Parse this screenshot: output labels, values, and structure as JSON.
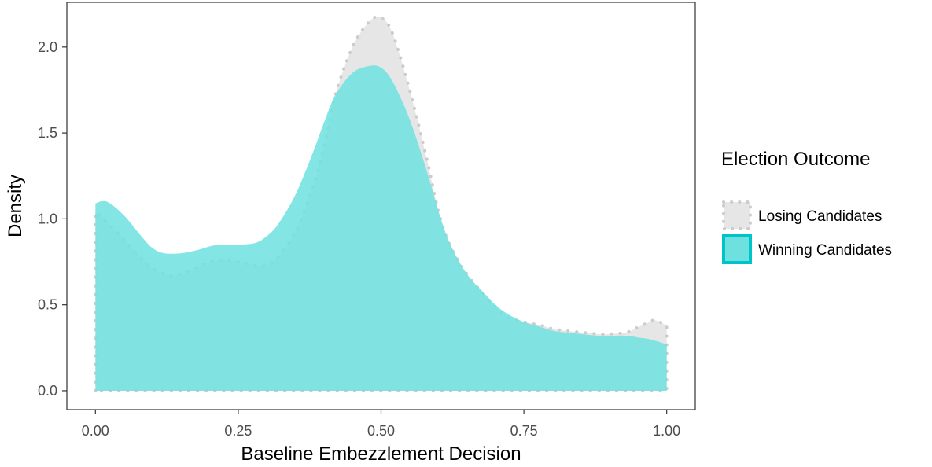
{
  "chart_data": {
    "type": "area",
    "xlabel": "Baseline Embezzlement Decision",
    "ylabel": "Density",
    "xlim": [
      -0.05,
      1.05
    ],
    "ylim": [
      -0.11,
      2.26
    ],
    "x_ticks": [
      0.0,
      0.25,
      0.5,
      0.75,
      1.0
    ],
    "x_tick_labels": [
      "0.00",
      "0.25",
      "0.50",
      "0.75",
      "1.00"
    ],
    "y_ticks": [
      0.0,
      0.5,
      1.0,
      1.5,
      2.0
    ],
    "y_tick_labels": [
      "0.0",
      "0.5",
      "1.0",
      "1.5",
      "2.0"
    ],
    "grid": false,
    "legend": {
      "title": "Election Outcome",
      "position": "right"
    },
    "series": [
      {
        "name": "Losing Candidates",
        "fill": "#e6e6e6",
        "outline": "#cccccc",
        "outline_style": "dotted",
        "x": [
          0.0,
          0.02,
          0.05,
          0.08,
          0.1,
          0.13,
          0.15,
          0.18,
          0.2,
          0.22,
          0.25,
          0.28,
          0.3,
          0.32,
          0.35,
          0.38,
          0.4,
          0.42,
          0.45,
          0.48,
          0.5,
          0.52,
          0.55,
          0.58,
          0.6,
          0.62,
          0.65,
          0.68,
          0.7,
          0.72,
          0.75,
          0.78,
          0.8,
          0.82,
          0.85,
          0.88,
          0.9,
          0.93,
          0.95,
          0.97,
          0.98,
          1.0
        ],
        "y": [
          1.04,
          0.98,
          0.88,
          0.77,
          0.71,
          0.67,
          0.68,
          0.72,
          0.75,
          0.76,
          0.75,
          0.73,
          0.73,
          0.78,
          0.92,
          1.18,
          1.42,
          1.72,
          2.0,
          2.15,
          2.17,
          2.08,
          1.75,
          1.35,
          1.05,
          0.85,
          0.68,
          0.56,
          0.49,
          0.43,
          0.4,
          0.38,
          0.36,
          0.35,
          0.34,
          0.33,
          0.33,
          0.34,
          0.37,
          0.4,
          0.41,
          0.38
        ]
      },
      {
        "name": "Winning Candidates",
        "fill": "#6ee0e0",
        "outline": "#00c5c8",
        "outline_style": "solid",
        "x": [
          0.0,
          0.02,
          0.05,
          0.08,
          0.1,
          0.12,
          0.15,
          0.18,
          0.2,
          0.22,
          0.25,
          0.28,
          0.3,
          0.32,
          0.35,
          0.38,
          0.4,
          0.42,
          0.45,
          0.48,
          0.5,
          0.52,
          0.55,
          0.58,
          0.6,
          0.62,
          0.65,
          0.68,
          0.7,
          0.72,
          0.75,
          0.78,
          0.8,
          0.82,
          0.85,
          0.88,
          0.9,
          0.93,
          0.95,
          0.97,
          1.0
        ],
        "y": [
          1.09,
          1.1,
          1.02,
          0.9,
          0.83,
          0.8,
          0.8,
          0.82,
          0.84,
          0.85,
          0.85,
          0.86,
          0.9,
          0.97,
          1.14,
          1.38,
          1.56,
          1.72,
          1.85,
          1.89,
          1.88,
          1.8,
          1.58,
          1.28,
          1.05,
          0.86,
          0.68,
          0.57,
          0.5,
          0.45,
          0.4,
          0.37,
          0.35,
          0.34,
          0.33,
          0.32,
          0.32,
          0.32,
          0.31,
          0.3,
          0.27
        ]
      }
    ]
  }
}
